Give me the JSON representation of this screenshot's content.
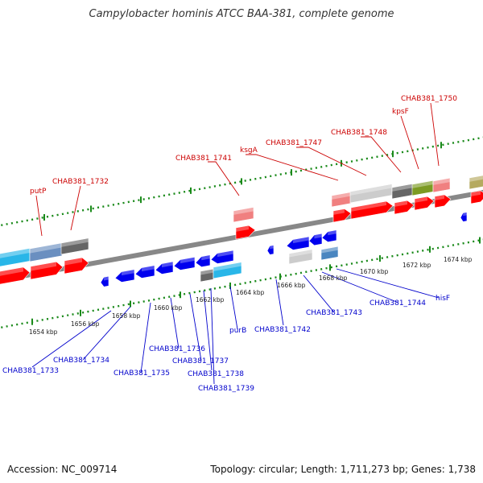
{
  "title": "Campylobacter hominis ATCC BAA-381, complete genome",
  "footer": {
    "accession": "Accession: NC_009714",
    "topology": "Topology: circular; Length: 1,711,273 bp; Genes: 1,738"
  },
  "colors": {
    "forward_label": "#cc0000",
    "reverse_label": "#0000cc",
    "forward_gene": "#ff0000",
    "reverse_gene": "#0000ee",
    "backbone": "#888888",
    "tick": "#1a8a1a"
  },
  "axis": {
    "tick_labels": [
      "1654 kbp",
      "1656 kbp",
      "1658 kbp",
      "1660 kbp",
      "1662 kbp",
      "1664 kbp",
      "1666 kbp",
      "1668 kbp",
      "1670 kbp",
      "1672 kbp",
      "1674 kbp"
    ]
  },
  "forward_labels": [
    "putP",
    "CHAB381_1732",
    "CHAB381_1741",
    "ksgA",
    "CHAB381_1747",
    "CHAB381_1748",
    "kpsF",
    "CHAB381_1750"
  ],
  "reverse_labels": [
    "CHAB381_1733",
    "CHAB381_1734",
    "CHAB381_1735",
    "CHAB381_1736",
    "CHAB381_1737",
    "CHAB381_1738",
    "CHAB381_1739",
    "purB",
    "CHAB381_1742",
    "CHAB381_1743",
    "CHAB381_1744",
    "hisF"
  ]
}
